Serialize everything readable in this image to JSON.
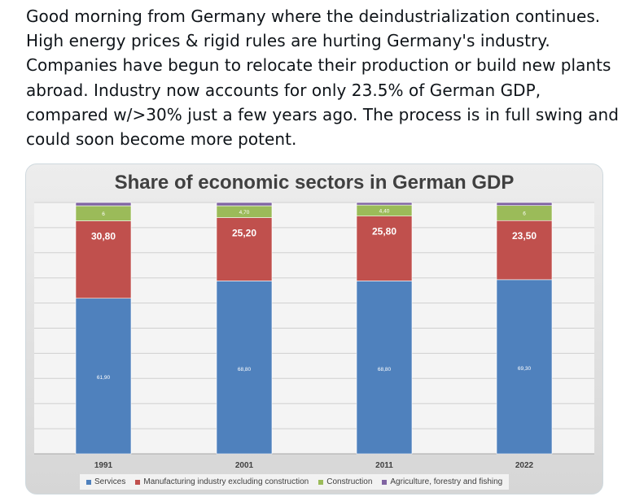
{
  "post": {
    "lines": [
      "Good morning from Germany where the deindustrialization continues.",
      "High energy prices & rigid rules are hurting Germany's industry.",
      "Companies have begun to relocate their production or build new plants",
      "abroad. Industry now accounts for only 23.5% of German GDP,",
      "compared w/>30% just a few years ago. The process is in full swing and",
      "could soon become more potent."
    ]
  },
  "chart_data": {
    "type": "bar",
    "stacked": true,
    "title": "Share of economic sectors in German GDP",
    "categories": [
      "1991",
      "2001",
      "2011",
      "2022"
    ],
    "series": [
      {
        "name": "Services",
        "values": [
          61.9,
          68.8,
          68.8,
          69.3
        ],
        "labels": [
          "61,90",
          "68,80",
          "68,80",
          "69,30"
        ],
        "color": "#4f81bd"
      },
      {
        "name": "Manufacturing industry excluding construction",
        "values": [
          30.8,
          25.2,
          25.8,
          23.5
        ],
        "labels": [
          "30,80",
          "25,20",
          "25,80",
          "23,50"
        ],
        "color": "#c0504d"
      },
      {
        "name": "Construction",
        "values": [
          6,
          4.7,
          4.4,
          6
        ],
        "labels": [
          "6",
          "4,70",
          "4,40",
          "6"
        ],
        "color": "#9bbb59"
      },
      {
        "name": "Agriculture, forestry and fishing",
        "values": [
          1.3,
          1.3,
          1.0,
          1.2
        ],
        "labels": [
          "",
          "",
          "",
          ""
        ],
        "color": "#8064a2"
      }
    ],
    "ylim": [
      0,
      100
    ],
    "grid": true,
    "legend_position": "bottom"
  }
}
